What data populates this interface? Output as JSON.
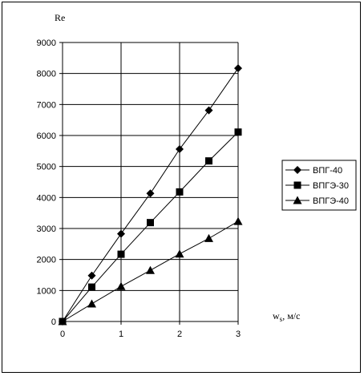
{
  "chart_data": {
    "type": "line",
    "title": "",
    "xlabel": "w",
    "xlabel_sub": "s",
    "xlabel_unit": ", м/с",
    "ylabel": "Re",
    "xlim": [
      0,
      3
    ],
    "ylim": [
      0,
      9000
    ],
    "xticks": [
      0,
      1,
      2,
      3
    ],
    "yticks": [
      0,
      1000,
      2000,
      3000,
      4000,
      5000,
      6000,
      7000,
      8000,
      9000
    ],
    "grid": true,
    "legend_position": "right",
    "series": [
      {
        "name": "ВПГ-40",
        "marker": "diamond",
        "x": [
          0,
          0.5,
          1,
          1.5,
          2,
          2.5,
          3
        ],
        "y": [
          0,
          1480,
          2830,
          4130,
          5560,
          6810,
          8170
        ]
      },
      {
        "name": "ВПГЭ-30",
        "marker": "square",
        "x": [
          0,
          0.5,
          1,
          1.5,
          2,
          2.5,
          3
        ],
        "y": [
          0,
          1110,
          2170,
          3190,
          4180,
          5180,
          6110
        ]
      },
      {
        "name": "ВПГЭ-40",
        "marker": "triangle",
        "x": [
          0,
          0.5,
          1,
          1.5,
          2,
          2.5,
          3
        ],
        "y": [
          0,
          570,
          1130,
          1650,
          2180,
          2680,
          3230
        ]
      }
    ]
  }
}
